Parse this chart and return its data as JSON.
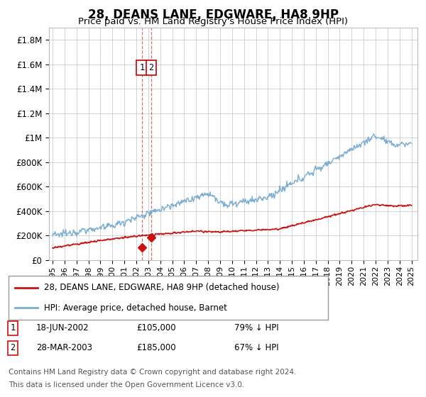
{
  "title": "28, DEANS LANE, EDGWARE, HA8 9HP",
  "subtitle": "Price paid vs. HM Land Registry's House Price Index (HPI)",
  "hpi_color": "#7aadd4",
  "price_color": "#cc1111",
  "grid_color": "#cccccc",
  "bg_color": "#ffffff",
  "legend_entries": [
    "28, DEANS LANE, EDGWARE, HA8 9HP (detached house)",
    "HPI: Average price, detached house, Barnet"
  ],
  "transactions": [
    {
      "num": 1,
      "date": "18-JUN-2002",
      "price": 105000,
      "hpi_pct": "79% ↓ HPI",
      "x_year": 2002.46
    },
    {
      "num": 2,
      "date": "28-MAR-2003",
      "price": 185000,
      "hpi_pct": "67% ↓ HPI",
      "x_year": 2003.24
    }
  ],
  "footnote1": "Contains HM Land Registry data © Crown copyright and database right 2024.",
  "footnote2": "This data is licensed under the Open Government Licence v3.0.",
  "ylabel_ticks": [
    "£0",
    "£200K",
    "£400K",
    "£600K",
    "£800K",
    "£1M",
    "£1.2M",
    "£1.4M",
    "£1.6M",
    "£1.8M"
  ],
  "ytick_vals": [
    0,
    200000,
    400000,
    600000,
    800000,
    1000000,
    1200000,
    1400000,
    1600000,
    1800000
  ],
  "ylim": [
    0,
    1900000
  ],
  "xlim_start": 1994.7,
  "xlim_end": 2025.5
}
